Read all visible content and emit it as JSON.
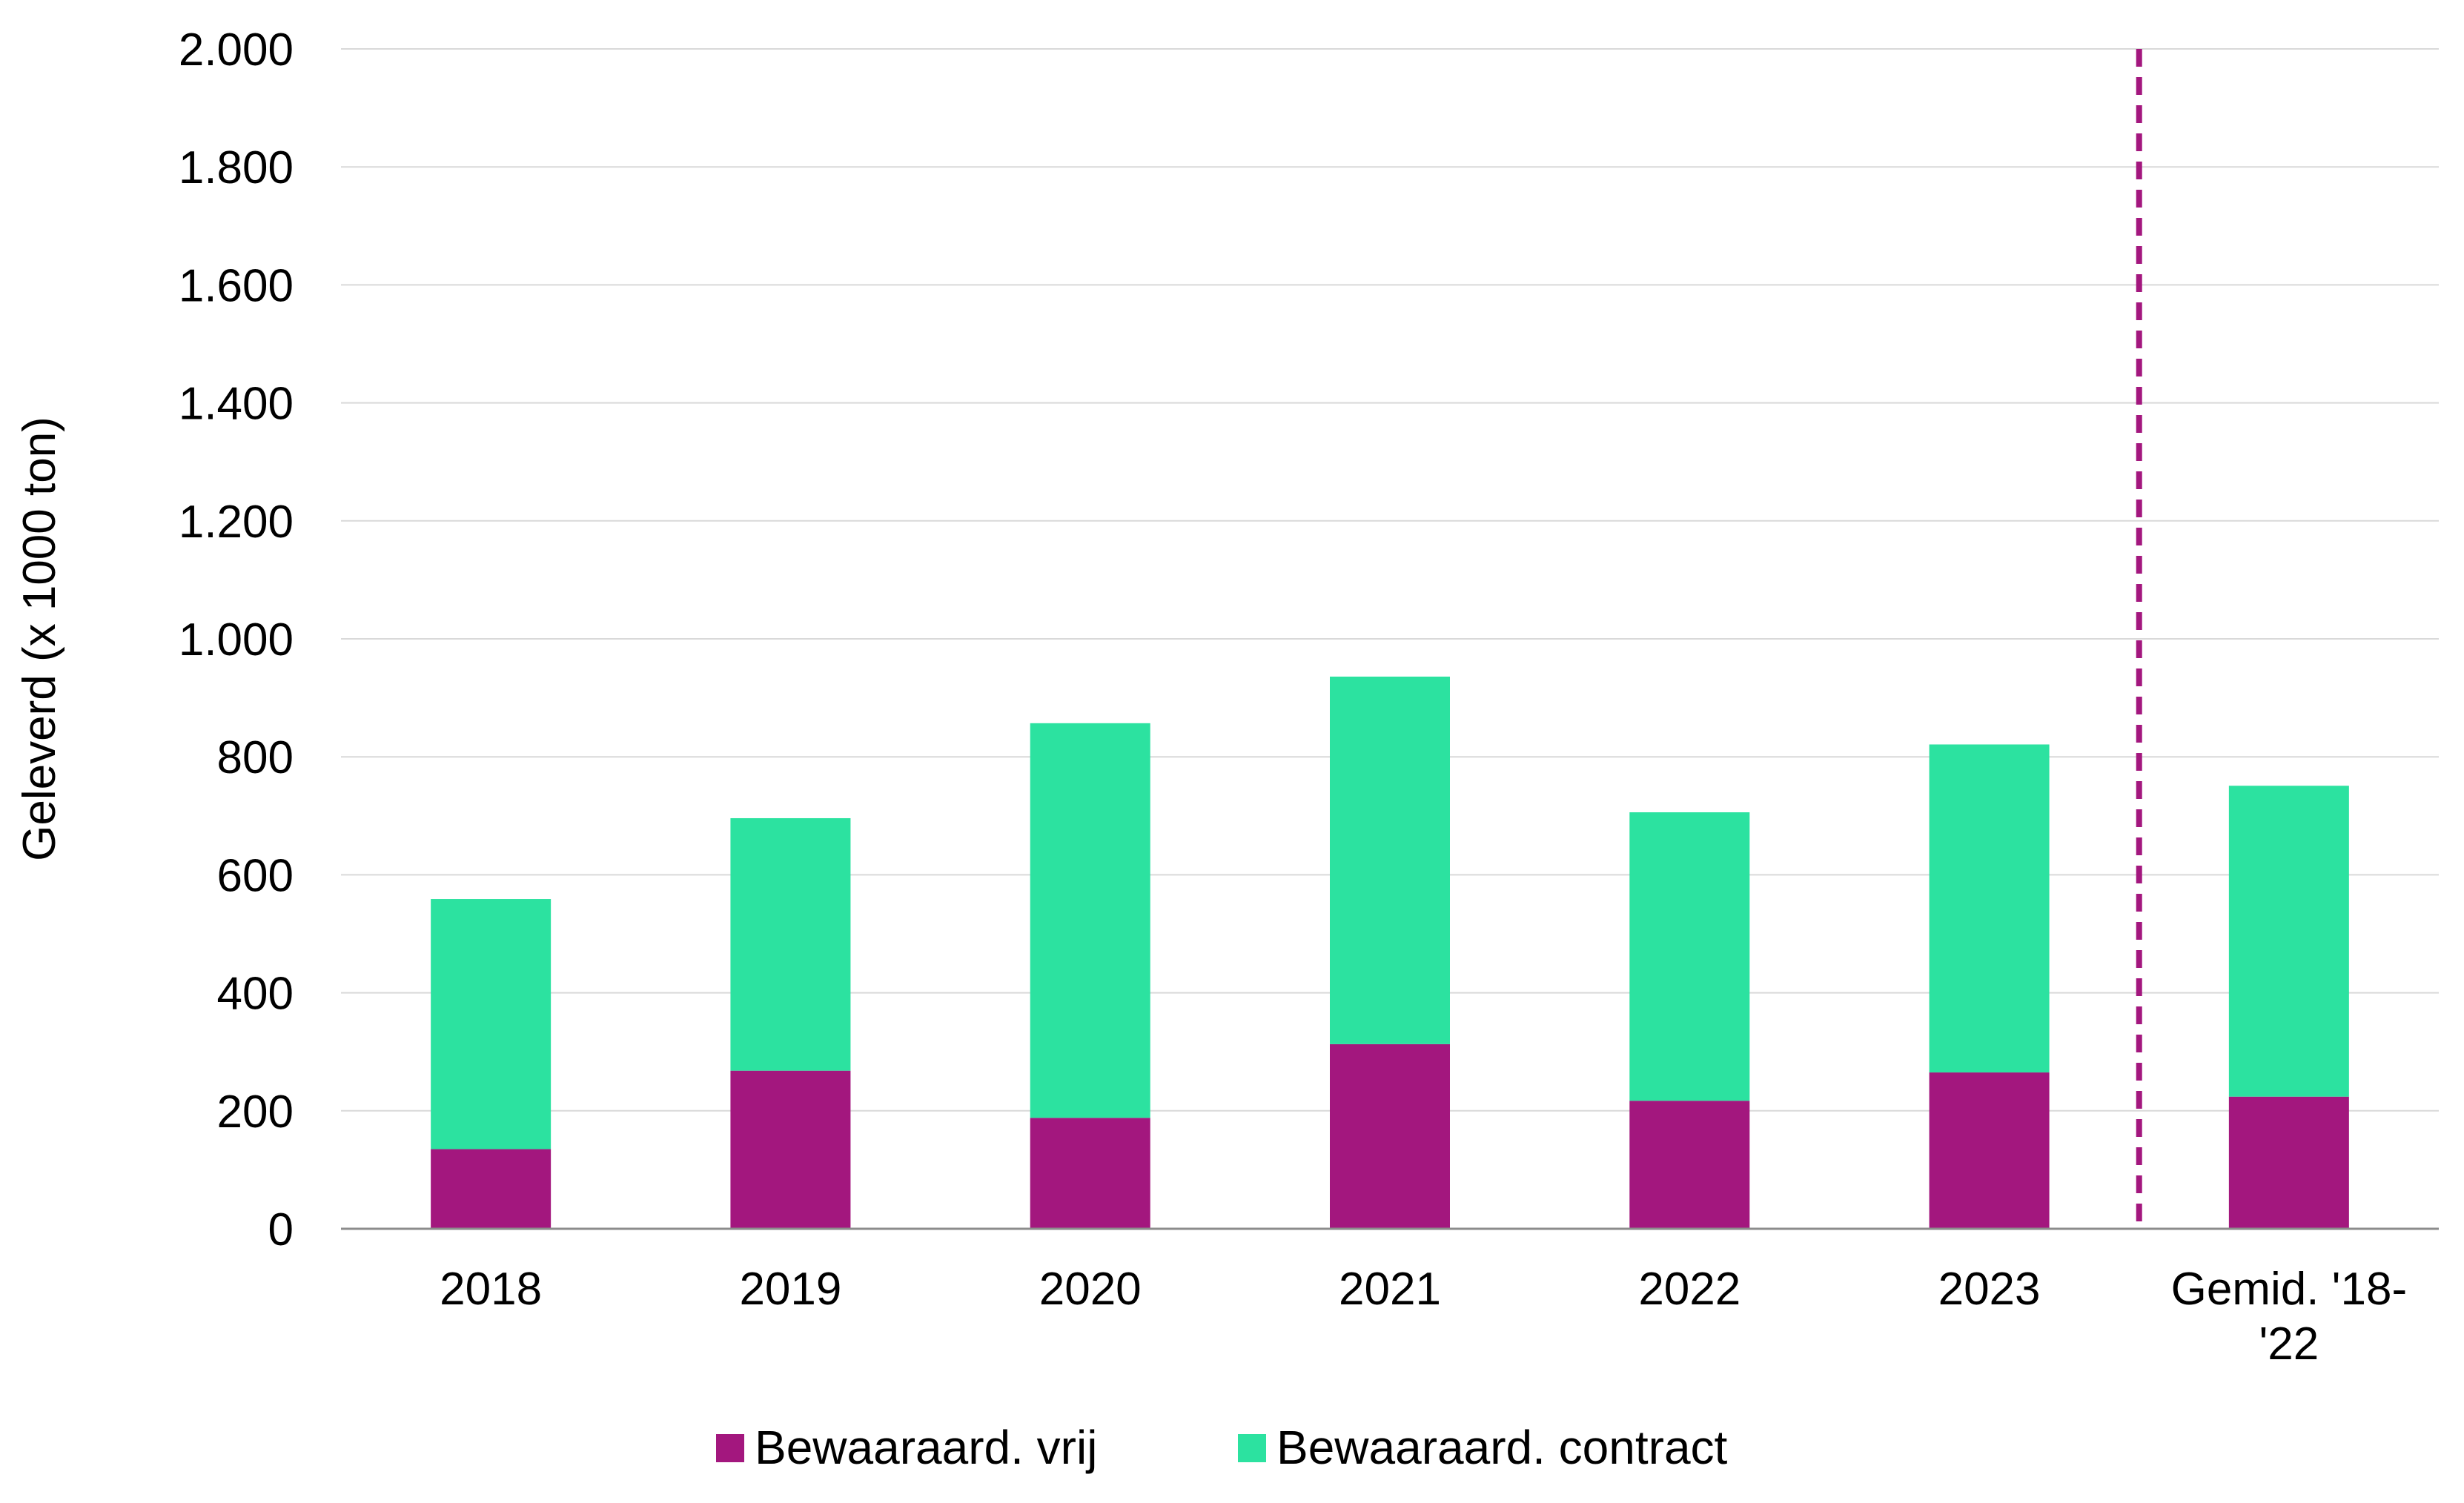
{
  "chart_data": {
    "type": "bar",
    "stacked": true,
    "categories": [
      "2018",
      "2019",
      "2020",
      "2021",
      "2022",
      "2023",
      "Gemid. '18-'22"
    ],
    "category_label_lines": [
      [
        "2018"
      ],
      [
        "2019"
      ],
      [
        "2020"
      ],
      [
        "2021"
      ],
      [
        "2022"
      ],
      [
        "2023"
      ],
      [
        "Gemid. '18-",
        "'22"
      ]
    ],
    "series": [
      {
        "name": "Bewaaraard. vrij",
        "color": "#a3177e",
        "values": [
          135,
          268,
          188,
          313,
          217,
          265,
          224
        ]
      },
      {
        "name": "Bewaaraard. contract",
        "color": "#2ce2a0",
        "values": [
          424,
          428,
          669,
          623,
          489,
          556,
          527
        ]
      }
    ],
    "title": "",
    "xlabel": "",
    "ylabel": "Geleverd (x 1000 ton)",
    "ylim": [
      0,
      2000
    ],
    "yticks": [
      0,
      200,
      400,
      600,
      800,
      1000,
      1200,
      1400,
      1600,
      1800,
      2000
    ],
    "ytick_labels": [
      "0",
      "200",
      "400",
      "600",
      "800",
      "1.000",
      "1.200",
      "1.400",
      "1.600",
      "1.800",
      "2.000"
    ],
    "grid": true,
    "legend_position": "bottom",
    "reference_line": {
      "type": "vertical-dashed",
      "between_categories": [
        "2023",
        "Gemid. '18-'22"
      ],
      "color": "#a3177e"
    }
  }
}
